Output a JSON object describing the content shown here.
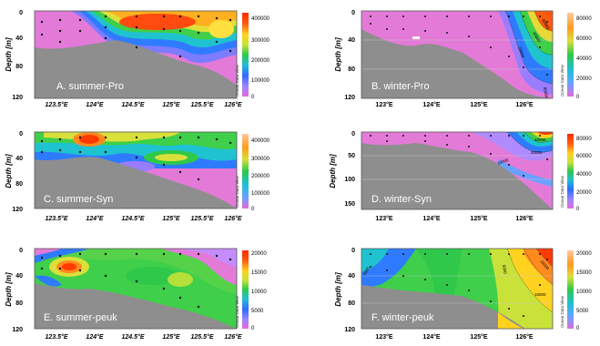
{
  "figure": {
    "panels": [
      {
        "id": "A",
        "label": "A. summer-Pro",
        "ylabel": "Depth [m]",
        "yticks": [
          "0",
          "40",
          "80",
          "120"
        ],
        "xticks": [
          "123.5°E",
          "124°E",
          "124.5°E",
          "125°E",
          "125.5°E",
          "126°E"
        ],
        "colorbar": [
          "400000",
          "300000",
          "200000",
          "100000",
          "0"
        ],
        "odv": "Ocean Data View",
        "contours": []
      },
      {
        "id": "B",
        "label": "B. winter-Pro",
        "ylabel": "Depth [m]",
        "yticks": [
          "0",
          "40",
          "80",
          "120"
        ],
        "xticks": [
          "123°E",
          "124°E",
          "125°E",
          "126°E"
        ],
        "colorbar": [
          "80000",
          "60000",
          "40000",
          "20000",
          "0"
        ],
        "odv": "Ocean Data View",
        "contours": [
          "20000",
          "40000",
          "60000",
          "80000"
        ]
      },
      {
        "id": "C",
        "label": "C. summer-Syn",
        "ylabel": "Depth [m]",
        "yticks": [
          "0",
          "40",
          "80",
          "120"
        ],
        "xticks": [
          "123.5°E",
          "124°E",
          "124.5°E",
          "125°E",
          "125.5°E",
          "126°E"
        ],
        "colorbar": [
          "400000",
          "300000",
          "200000",
          "100000",
          "0"
        ],
        "odv": "Ocean Data View",
        "contours": []
      },
      {
        "id": "D",
        "label": "D. winter-Syn",
        "ylabel": "Depth [m]",
        "yticks": [
          "0",
          "50",
          "100",
          "150"
        ],
        "xticks": [
          "123°E",
          "124°E",
          "125°E",
          "126°E"
        ],
        "colorbar": [
          "80000",
          "60000",
          "40000",
          "20000",
          "0"
        ],
        "odv": "Ocean Data View",
        "contours": [
          "20000",
          "10000",
          "40000"
        ]
      },
      {
        "id": "E",
        "label": "E. summer-peuk",
        "ylabel": "Depth [m]",
        "yticks": [
          "0",
          "40",
          "80",
          "120"
        ],
        "xticks": [
          "123.5°E",
          "124°E",
          "124.5°E",
          "125°E",
          "125.5°E",
          "126°E"
        ],
        "colorbar": [
          "20000",
          "15000",
          "10000",
          "5000",
          "0"
        ],
        "odv": "Ocean Data View",
        "contours": []
      },
      {
        "id": "F",
        "label": "F. winter-peuk",
        "ylabel": "Depth [m]",
        "yticks": [
          "0",
          "40",
          "80",
          "120"
        ],
        "xticks": [
          "123°E",
          "124°E",
          "125°E",
          "126°E"
        ],
        "colorbar": [
          "20000",
          "15000",
          "10000",
          "5000",
          "0"
        ],
        "odv": "Ocean Data View",
        "contours": [
          "5000",
          "10000",
          "15000",
          "2500"
        ]
      }
    ]
  },
  "chart_data": [
    {
      "type": "heatmap",
      "panel": "A. summer-Pro",
      "xlabel": "",
      "ylabel": "Depth [m]",
      "ylim": [
        120,
        0
      ],
      "xlim": [
        123.1,
        126.2
      ],
      "colorbar_range": [
        0,
        400000
      ],
      "hotspots": [
        {
          "x": 124.6,
          "depth": 15,
          "value": 380000
        },
        {
          "x": 125.0,
          "depth": 20,
          "value": 400000
        },
        {
          "x": 126.0,
          "depth": 30,
          "value": 300000
        }
      ],
      "stations_x": [
        123.2,
        123.5,
        123.7,
        124.0,
        124.2,
        124.5,
        124.8,
        125.0,
        125.3,
        125.5,
        125.8,
        126.1
      ]
    },
    {
      "type": "heatmap",
      "panel": "B. winter-Pro",
      "xlabel": "",
      "ylabel": "Depth [m]",
      "ylim": [
        120,
        0
      ],
      "xlim": [
        122.5,
        126.8
      ],
      "colorbar_range": [
        0,
        80000
      ],
      "hotspots": [
        {
          "x": 126.6,
          "depth": 15,
          "value": 80000
        },
        {
          "x": 126.4,
          "depth": 40,
          "value": 40000
        }
      ],
      "stations_x": [
        122.7,
        123.0,
        123.3,
        123.7,
        124.0,
        124.4,
        124.8,
        125.2,
        125.6,
        126.0,
        126.3,
        126.6
      ]
    },
    {
      "type": "heatmap",
      "panel": "C. summer-Syn",
      "xlabel": "",
      "ylabel": "Depth [m]",
      "ylim": [
        120,
        0
      ],
      "xlim": [
        123.1,
        126.2
      ],
      "colorbar_range": [
        0,
        400000
      ],
      "hotspots": [
        {
          "x": 123.9,
          "depth": 10,
          "value": 400000
        },
        {
          "x": 124.4,
          "depth": 25,
          "value": 200000
        },
        {
          "x": 125.6,
          "depth": 40,
          "value": 150000
        }
      ],
      "stations_x": [
        123.2,
        123.5,
        123.7,
        124.0,
        124.2,
        124.5,
        124.8,
        125.0,
        125.3,
        125.5,
        125.8,
        126.1
      ]
    },
    {
      "type": "heatmap",
      "panel": "D. winter-Syn",
      "xlabel": "",
      "ylabel": "Depth [m]",
      "ylim": [
        160,
        0
      ],
      "xlim": [
        122.5,
        126.8
      ],
      "colorbar_range": [
        0,
        80000
      ],
      "hotspots": [
        {
          "x": 126.5,
          "depth": 20,
          "value": 80000
        },
        {
          "x": 126.3,
          "depth": 60,
          "value": 30000
        }
      ],
      "stations_x": [
        122.7,
        123.0,
        123.3,
        123.7,
        124.0,
        124.4,
        124.8,
        125.2,
        125.6,
        126.0,
        126.3,
        126.6
      ]
    },
    {
      "type": "heatmap",
      "panel": "E. summer-peuk",
      "xlabel": "",
      "ylabel": "Depth [m]",
      "ylim": [
        120,
        0
      ],
      "xlim": [
        123.1,
        126.2
      ],
      "colorbar_range": [
        0,
        20000
      ],
      "hotspots": [
        {
          "x": 123.8,
          "depth": 25,
          "value": 18000
        },
        {
          "x": 125.3,
          "depth": 45,
          "value": 10000
        }
      ],
      "stations_x": [
        123.2,
        123.5,
        123.7,
        124.0,
        124.2,
        124.5,
        124.8,
        125.0,
        125.3,
        125.5,
        125.8,
        126.1
      ]
    },
    {
      "type": "heatmap",
      "panel": "F. winter-peuk",
      "xlabel": "",
      "ylabel": "Depth [m]",
      "ylim": [
        120,
        0
      ],
      "xlim": [
        122.5,
        126.8
      ],
      "colorbar_range": [
        0,
        20000
      ],
      "hotspots": [
        {
          "x": 126.6,
          "depth": 10,
          "value": 20000
        },
        {
          "x": 126.0,
          "depth": 50,
          "value": 10000
        }
      ],
      "stations_x": [
        122.7,
        123.0,
        123.3,
        123.7,
        124.0,
        124.4,
        124.8,
        125.2,
        125.6,
        126.0,
        126.3,
        126.6
      ]
    }
  ]
}
